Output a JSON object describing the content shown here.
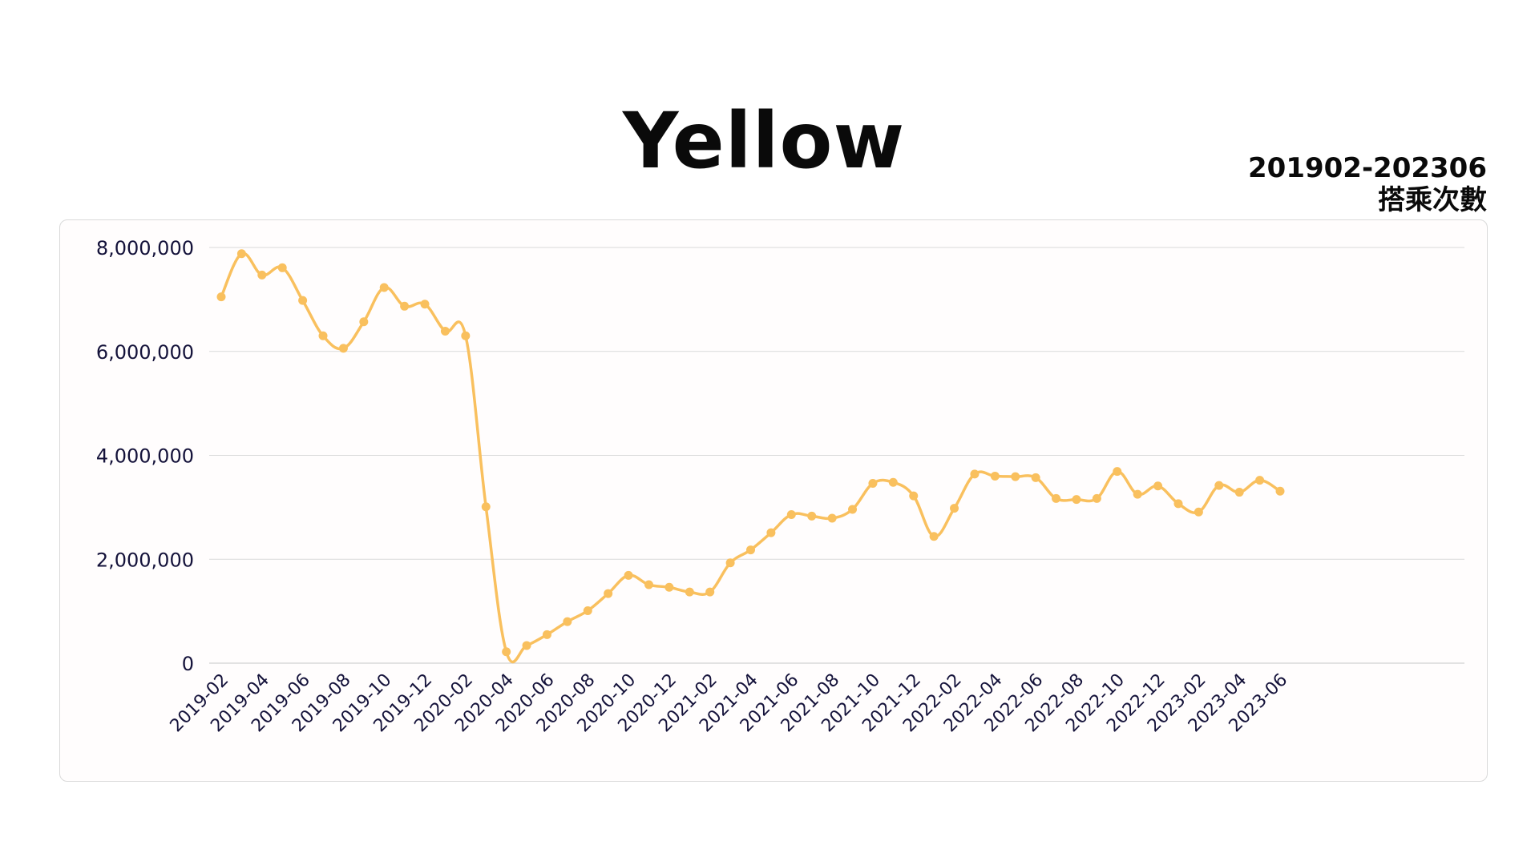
{
  "title": "Yellow",
  "subtitle_line1": "201902-202306",
  "subtitle_line2": "搭乘次數",
  "colors": {
    "line": "#F9C05E",
    "grid": "#d9d9d9",
    "text": "#14123a"
  },
  "chart_data": {
    "type": "line",
    "title": "Yellow",
    "x": [
      "2019-02",
      "2019-03",
      "2019-04",
      "2019-05",
      "2019-06",
      "2019-07",
      "2019-08",
      "2019-09",
      "2019-10",
      "2019-11",
      "2019-12",
      "2020-01",
      "2020-02",
      "2020-03",
      "2020-04",
      "2020-05",
      "2020-06",
      "2020-07",
      "2020-08",
      "2020-09",
      "2020-10",
      "2020-11",
      "2020-12",
      "2021-01",
      "2021-02",
      "2021-03",
      "2021-04",
      "2021-05",
      "2021-06",
      "2021-07",
      "2021-08",
      "2021-09",
      "2021-10",
      "2021-11",
      "2021-12",
      "2022-01",
      "2022-02",
      "2022-03",
      "2022-04",
      "2022-05",
      "2022-06",
      "2022-07",
      "2022-08",
      "2022-09",
      "2022-10",
      "2022-11",
      "2022-12",
      "2023-01",
      "2023-02",
      "2023-03",
      "2023-04",
      "2023-05",
      "2023-06"
    ],
    "x_tick_labels": [
      "2019-02",
      "2019-04",
      "2019-06",
      "2019-08",
      "2019-10",
      "2019-12",
      "2020-02",
      "2020-04",
      "2020-06",
      "2020-08",
      "2020-10",
      "2020-12",
      "2021-02",
      "2021-04",
      "2021-06",
      "2021-08",
      "2021-10",
      "2021-12",
      "2022-02",
      "2022-04",
      "2022-06",
      "2022-08",
      "2022-10",
      "2022-12",
      "2023-02",
      "2023-04",
      "2023-06"
    ],
    "series": [
      {
        "values": [
          7050000,
          7880000,
          7470000,
          7610000,
          6980000,
          6300000,
          6060000,
          6570000,
          7230000,
          6870000,
          6910000,
          6390000,
          6300000,
          3010000,
          220000,
          340000,
          550000,
          800000,
          1010000,
          1340000,
          1690000,
          1510000,
          1460000,
          1370000,
          1370000,
          1930000,
          2180000,
          2510000,
          2860000,
          2830000,
          2790000,
          2960000,
          3460000,
          3480000,
          3220000,
          2440000,
          2980000,
          3640000,
          3600000,
          3590000,
          3570000,
          3170000,
          3150000,
          3170000,
          3690000,
          3250000,
          3410000,
          3070000,
          2910000,
          3420000,
          3290000,
          3520000,
          3310000
        ]
      }
    ],
    "y_ticks": [
      "0",
      "2,000,000",
      "4,000,000",
      "6,000,000",
      "8,000,000"
    ],
    "ylim": [
      0,
      8000000
    ],
    "grid": true,
    "legend": "none"
  }
}
